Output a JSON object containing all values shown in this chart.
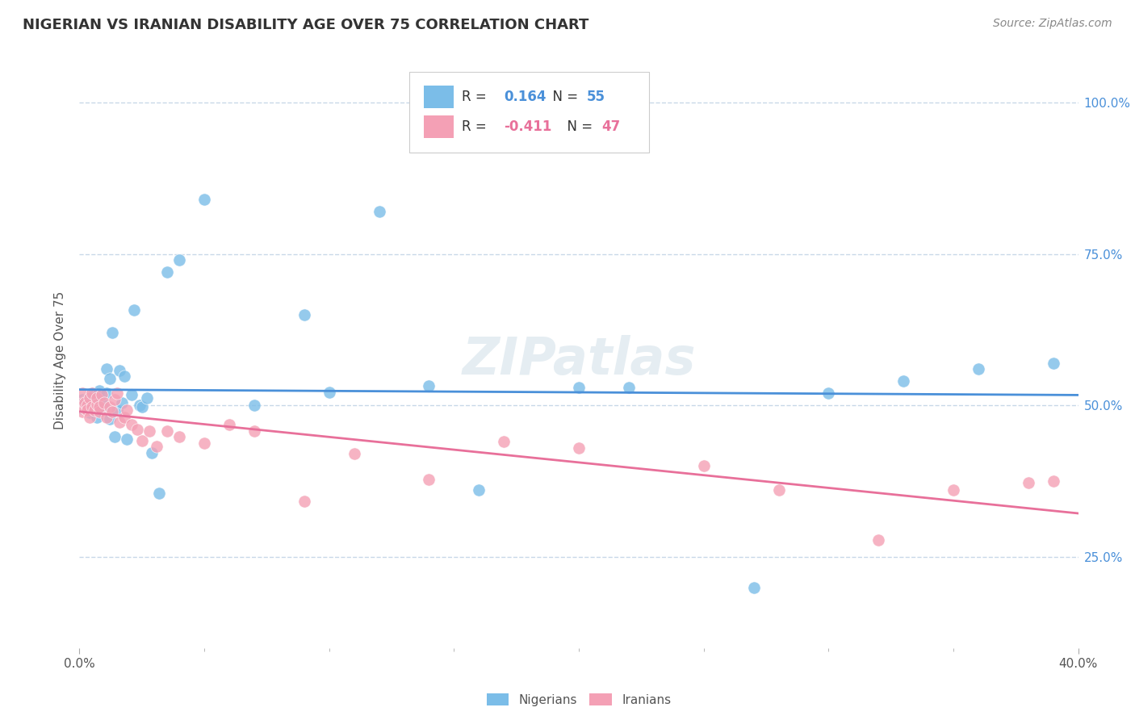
{
  "title": "NIGERIAN VS IRANIAN DISABILITY AGE OVER 75 CORRELATION CHART",
  "source": "Source: ZipAtlas.com",
  "ylabel": "Disability Age Over 75",
  "xmin": 0.0,
  "xmax": 0.4,
  "ymin": 0.1,
  "ymax": 1.05,
  "yticks": [
    0.25,
    0.5,
    0.75,
    1.0
  ],
  "ytick_labels": [
    "25.0%",
    "50.0%",
    "75.0%",
    "100.0%"
  ],
  "nigerian_R": 0.164,
  "nigerian_N": 55,
  "iranian_R": -0.411,
  "iranian_N": 47,
  "nigerian_color": "#7bbde8",
  "iranian_color": "#f4a0b5",
  "nigerian_line_color": "#4a90d9",
  "iranian_line_color": "#e8709a",
  "background_color": "#ffffff",
  "grid_color": "#c8d8e8",
  "watermark": "ZIPatlas",
  "nigerian_x": [
    0.001,
    0.001,
    0.001,
    0.002,
    0.002,
    0.003,
    0.003,
    0.003,
    0.004,
    0.004,
    0.005,
    0.005,
    0.006,
    0.006,
    0.007,
    0.007,
    0.007,
    0.008,
    0.008,
    0.009,
    0.01,
    0.011,
    0.011,
    0.012,
    0.012,
    0.013,
    0.014,
    0.015,
    0.016,
    0.017,
    0.018,
    0.019,
    0.021,
    0.022,
    0.024,
    0.025,
    0.027,
    0.029,
    0.032,
    0.035,
    0.04,
    0.05,
    0.07,
    0.09,
    0.1,
    0.12,
    0.14,
    0.16,
    0.2,
    0.22,
    0.27,
    0.3,
    0.33,
    0.36,
    0.39
  ],
  "nigerian_y": [
    0.495,
    0.505,
    0.51,
    0.498,
    0.502,
    0.495,
    0.505,
    0.51,
    0.488,
    0.512,
    0.5,
    0.52,
    0.492,
    0.508,
    0.5,
    0.515,
    0.48,
    0.493,
    0.525,
    0.505,
    0.495,
    0.56,
    0.52,
    0.545,
    0.478,
    0.62,
    0.448,
    0.492,
    0.558,
    0.505,
    0.548,
    0.445,
    0.518,
    0.658,
    0.5,
    0.498,
    0.512,
    0.422,
    0.355,
    0.72,
    0.74,
    0.84,
    0.5,
    0.65,
    0.522,
    0.82,
    0.532,
    0.36,
    0.53,
    0.53,
    0.2,
    0.52,
    0.54,
    0.56,
    0.57
  ],
  "iranian_x": [
    0.001,
    0.001,
    0.001,
    0.002,
    0.002,
    0.003,
    0.003,
    0.004,
    0.004,
    0.005,
    0.005,
    0.006,
    0.007,
    0.007,
    0.008,
    0.008,
    0.009,
    0.01,
    0.011,
    0.012,
    0.013,
    0.014,
    0.015,
    0.016,
    0.018,
    0.019,
    0.021,
    0.023,
    0.025,
    0.028,
    0.031,
    0.035,
    0.04,
    0.05,
    0.06,
    0.07,
    0.09,
    0.11,
    0.14,
    0.17,
    0.2,
    0.25,
    0.28,
    0.32,
    0.35,
    0.38,
    0.39
  ],
  "iranian_y": [
    0.49,
    0.505,
    0.52,
    0.495,
    0.505,
    0.5,
    0.492,
    0.48,
    0.512,
    0.498,
    0.52,
    0.492,
    0.502,
    0.512,
    0.49,
    0.498,
    0.518,
    0.505,
    0.48,
    0.498,
    0.49,
    0.51,
    0.52,
    0.472,
    0.48,
    0.492,
    0.468,
    0.46,
    0.442,
    0.458,
    0.432,
    0.458,
    0.448,
    0.438,
    0.468,
    0.458,
    0.342,
    0.42,
    0.378,
    0.44,
    0.43,
    0.4,
    0.36,
    0.278,
    0.36,
    0.372,
    0.375
  ]
}
